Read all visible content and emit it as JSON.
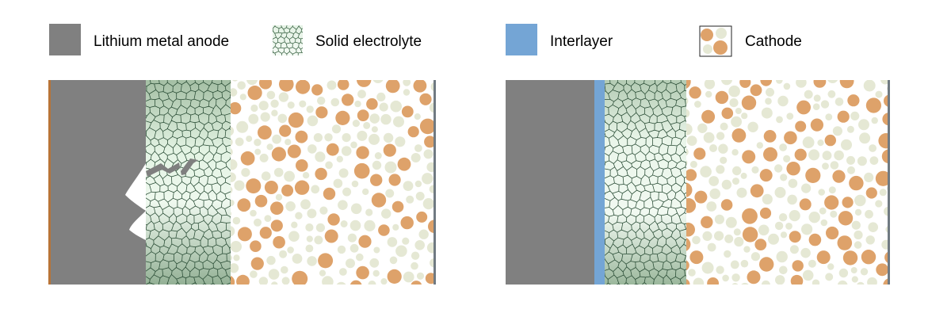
{
  "legend": {
    "anode": "Lithium metal anode",
    "electrolyte": "Solid electrolyte",
    "interlayer": "Interlayer",
    "cathode": "Cathode"
  },
  "colors": {
    "anode": "#808080",
    "interlayer": "#74a5d5",
    "cathode_large": "#dea26a",
    "cathode_small": "#e5e8d4",
    "electrolyte_light": "#eef8ee",
    "electrolyte_dark": "#9bb69c",
    "electrolyte_lines": "#274a33",
    "current_collector_anode": "#b87438",
    "current_collector_cathode": "#707a82"
  },
  "icons": {
    "anode": "gray-square-icon",
    "electrolyte": "grain-mesh-icon",
    "interlayer": "blue-square-icon",
    "cathode": "particles-icon"
  },
  "panels": [
    {
      "id": "without-interlayer",
      "has_interlayer": false,
      "shows_dendrite_crack": true
    },
    {
      "id": "with-interlayer",
      "has_interlayer": true,
      "shows_dendrite_crack": false
    }
  ]
}
